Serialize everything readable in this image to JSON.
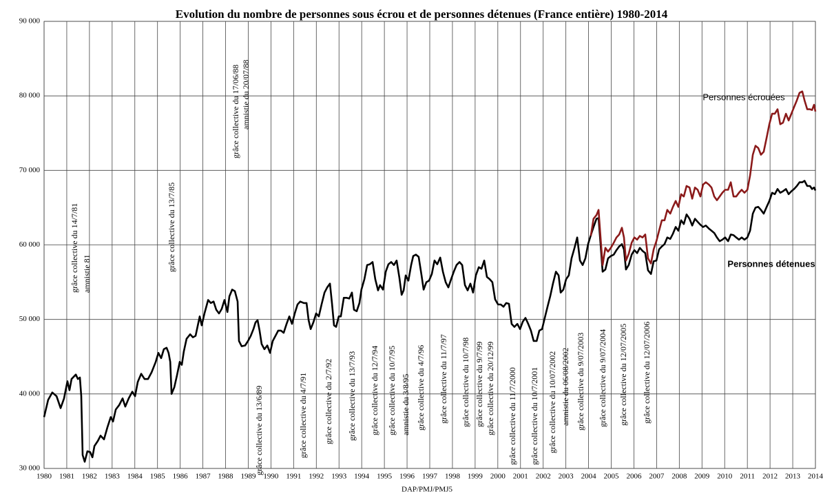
{
  "chart_data": {
    "type": "line",
    "title": "Evolution du nombre de personnes sous écrou et de personnes détenues (France entière) 1980-2014",
    "xlabel": "DAP/PMJ/PMJ5",
    "xlim": [
      1980,
      2014
    ],
    "ylim": [
      30000,
      90000
    ],
    "xticks": [
      1980,
      1981,
      1982,
      1983,
      1984,
      1985,
      1986,
      1987,
      1988,
      1989,
      1990,
      1991,
      1992,
      1993,
      1994,
      1995,
      1996,
      1997,
      1998,
      1999,
      2000,
      2001,
      2002,
      2003,
      2004,
      2005,
      2006,
      2007,
      2008,
      2009,
      2010,
      2011,
      2012,
      2013,
      2014
    ],
    "yticks": [
      {
        "value": 30000,
        "label": "30 000"
      },
      {
        "value": 40000,
        "label": "40 000"
      },
      {
        "value": 50000,
        "label": "50 000"
      },
      {
        "value": 60000,
        "label": "60 000"
      },
      {
        "value": 70000,
        "label": "70 000"
      },
      {
        "value": 80000,
        "label": "80 000"
      },
      {
        "value": 90000,
        "label": "90 000"
      }
    ],
    "grid": true,
    "annotations": [
      "grâce collective du 14/7/81",
      "amnistie 81",
      "grâce collective du 13/7/85",
      "grâce collective du 17/06/88",
      "amnistie du 20/07/88",
      "grâce collective du 13/6/89",
      "grâce collective du 4/7/91",
      "grâce collective du 2/7/92",
      "grâce collective du 13/7/93",
      "grâce collective du 12/7/94",
      "grâce collective du 10/7/95",
      "amnistie du 3/8/95",
      "grâce collective du 4/7/96",
      "grâce collective du 11/7/97",
      "grâce collective du 10/7/98",
      "grâce collective du 9/7/99",
      "grâce collective du 20/12/99",
      "grâce collective du 11/7/2000",
      "grâce collective du 10/7/2001",
      "grâce collective du 10/07/2002",
      "amnistie du  06/08/2002",
      "grâce collective du 9/07/2003",
      "grâce collective du 9/07/2004",
      "grâce collective du 12/07/2005",
      "grâce collective du 12/07/2006"
    ],
    "series": [
      {
        "name": "Personnes détenues",
        "color": "#000000",
        "x": [
          1980.0,
          1980.18,
          1980.36,
          1980.55,
          1980.73,
          1980.88,
          1981.03,
          1981.12,
          1981.21,
          1981.4,
          1981.49,
          1981.58,
          1981.64,
          1981.7,
          1981.79,
          1981.91,
          1982.03,
          1982.13,
          1982.22,
          1982.37,
          1982.49,
          1982.64,
          1982.79,
          1982.94,
          1983.04,
          1983.16,
          1983.31,
          1983.46,
          1983.58,
          1983.73,
          1983.89,
          1984.01,
          1984.13,
          1984.28,
          1984.43,
          1984.58,
          1984.74,
          1984.92,
          1985.04,
          1985.16,
          1985.28,
          1985.4,
          1985.49,
          1985.56,
          1985.62,
          1985.74,
          1985.86,
          1985.98,
          1986.07,
          1986.16,
          1986.28,
          1986.44,
          1986.56,
          1986.68,
          1986.86,
          1986.95,
          1987.07,
          1987.23,
          1987.35,
          1987.47,
          1987.59,
          1987.71,
          1987.83,
          1987.95,
          1988.08,
          1988.17,
          1988.29,
          1988.41,
          1988.53,
          1988.59,
          1988.71,
          1988.86,
          1988.99,
          1989.11,
          1989.23,
          1989.32,
          1989.41,
          1989.5,
          1989.59,
          1989.71,
          1989.84,
          1989.96,
          1990.08,
          1990.2,
          1990.32,
          1990.44,
          1990.56,
          1990.69,
          1990.81,
          1990.93,
          1991.05,
          1991.17,
          1991.29,
          1991.45,
          1991.57,
          1991.66,
          1991.75,
          1991.87,
          1991.99,
          1992.11,
          1992.23,
          1992.36,
          1992.48,
          1992.6,
          1992.69,
          1992.78,
          1992.87,
          1992.99,
          1993.08,
          1993.21,
          1993.33,
          1993.45,
          1993.57,
          1993.66,
          1993.78,
          1993.9,
          1993.99,
          1994.12,
          1994.24,
          1994.36,
          1994.48,
          1994.6,
          1994.72,
          1994.81,
          1994.94,
          1995.06,
          1995.18,
          1995.3,
          1995.42,
          1995.54,
          1995.66,
          1995.76,
          1995.85,
          1995.94,
          1996.06,
          1996.18,
          1996.27,
          1996.39,
          1996.51,
          1996.64,
          1996.73,
          1996.85,
          1996.97,
          1997.09,
          1997.21,
          1997.33,
          1997.46,
          1997.58,
          1997.7,
          1997.82,
          1997.94,
          1998.06,
          1998.18,
          1998.31,
          1998.43,
          1998.55,
          1998.67,
          1998.79,
          1998.91,
          1999.03,
          1999.16,
          1999.28,
          1999.4,
          1999.52,
          1999.64,
          1999.76,
          1999.88,
          2000.01,
          2000.13,
          2000.25,
          2000.37,
          2000.49,
          2000.61,
          2000.73,
          2000.86,
          2000.98,
          2001.1,
          2001.22,
          2001.34,
          2001.46,
          2001.58,
          2001.71,
          2001.83,
          2001.95,
          2002.07,
          2002.19,
          2002.31,
          2002.43,
          2002.56,
          2002.68,
          2002.77,
          2002.89,
          2003.01,
          2003.13,
          2003.25,
          2003.38,
          2003.5,
          2003.62,
          2003.74,
          2003.86,
          2003.98,
          2004.1,
          2004.22,
          2004.35,
          2004.44,
          2004.53,
          2004.62,
          2004.74,
          2004.86,
          2004.98,
          2005.11,
          2005.23,
          2005.35,
          2005.47,
          2005.56,
          2005.65,
          2005.77,
          2005.9,
          2006.02,
          2006.14,
          2006.26,
          2006.38,
          2006.5,
          2006.62,
          2006.75,
          2006.87,
          2006.99,
          2007.11,
          2007.23,
          2007.35,
          2007.47,
          2007.6,
          2007.72,
          2007.84,
          2007.96,
          2008.08,
          2008.2,
          2008.32,
          2008.45,
          2008.57,
          2008.69,
          2008.81,
          2008.93,
          2009.05,
          2009.17,
          2009.3,
          2009.42,
          2009.54,
          2009.66,
          2009.78,
          2009.9,
          2010.02,
          2010.15,
          2010.27,
          2010.39,
          2010.51,
          2010.63,
          2010.75,
          2010.87,
          2011.0,
          2011.12,
          2011.24,
          2011.36,
          2011.48,
          2011.6,
          2011.72,
          2011.85,
          2011.97,
          2012.09,
          2012.21,
          2012.33,
          2012.45,
          2012.57,
          2012.7,
          2012.82,
          2012.94,
          2013.06,
          2013.18,
          2013.3,
          2013.42,
          2013.52,
          2013.64,
          2013.76,
          2013.85,
          2013.94,
          2014.0
        ],
        "values": [
          36900,
          39200,
          40200,
          39700,
          38100,
          39400,
          41700,
          40500,
          42000,
          42600,
          42000,
          42200,
          39700,
          31800,
          30900,
          32300,
          32200,
          31500,
          33000,
          33700,
          34400,
          33900,
          35500,
          36900,
          36300,
          37900,
          38500,
          39400,
          38300,
          39400,
          40300,
          39700,
          41600,
          42700,
          42000,
          42000,
          42900,
          44300,
          45500,
          44800,
          46000,
          46200,
          45500,
          44300,
          40000,
          40900,
          42500,
          44300,
          43900,
          45700,
          47400,
          48000,
          47600,
          47800,
          50400,
          49200,
          50800,
          52600,
          52200,
          52400,
          51300,
          50800,
          51400,
          52600,
          51000,
          53100,
          54000,
          53800,
          52400,
          47100,
          46400,
          46500,
          47100,
          47800,
          48700,
          49600,
          49900,
          48500,
          46700,
          46000,
          46500,
          45500,
          47100,
          47800,
          48500,
          48500,
          48200,
          49400,
          50400,
          49400,
          50800,
          52000,
          52400,
          52200,
          52200,
          49900,
          48700,
          49600,
          50800,
          50400,
          52000,
          53600,
          54300,
          54800,
          52200,
          49200,
          49000,
          50400,
          50400,
          52900,
          52900,
          52800,
          53600,
          51300,
          51100,
          52200,
          54000,
          55400,
          57300,
          57400,
          57700,
          55400,
          53900,
          54600,
          54000,
          56400,
          57400,
          57700,
          57300,
          57900,
          55600,
          53300,
          53900,
          55900,
          55200,
          57300,
          58500,
          58700,
          58400,
          55900,
          54000,
          55000,
          55200,
          56100,
          57900,
          57400,
          58300,
          56400,
          55000,
          54300,
          55400,
          56400,
          57300,
          57700,
          57300,
          54600,
          53900,
          54800,
          53600,
          55900,
          57000,
          56800,
          57900,
          55700,
          55400,
          55000,
          52700,
          52000,
          52000,
          51700,
          52200,
          52100,
          49400,
          49000,
          49400,
          48700,
          49700,
          50200,
          49400,
          48500,
          47100,
          47100,
          48500,
          48700,
          50200,
          51700,
          53100,
          54800,
          56400,
          55900,
          53600,
          54000,
          55400,
          55900,
          58200,
          59600,
          61000,
          57900,
          57300,
          58200,
          60100,
          61300,
          62400,
          63500,
          63600,
          60100,
          56400,
          56700,
          58200,
          58500,
          58700,
          59300,
          59800,
          60100,
          59400,
          56700,
          57300,
          58700,
          59300,
          58900,
          59600,
          59200,
          58900,
          56600,
          56100,
          57800,
          57900,
          59400,
          59800,
          60100,
          61000,
          60800,
          61500,
          62400,
          61900,
          63300,
          62800,
          64100,
          63500,
          62600,
          63500,
          63100,
          62700,
          62400,
          62600,
          62200,
          61900,
          61600,
          61000,
          60500,
          60700,
          61000,
          60500,
          61400,
          61300,
          61000,
          60700,
          61000,
          60700,
          61000,
          61900,
          64200,
          65000,
          65100,
          64700,
          64200,
          65100,
          65900,
          67000,
          66800,
          67500,
          67000,
          67200,
          67500,
          66800,
          67200,
          67500,
          67900,
          68400,
          68400,
          68600,
          67900,
          67900,
          67500,
          67700,
          67300
        ]
      },
      {
        "name": "Personnes  écrouées",
        "color": "#8b1a1a",
        "x": [
          2004.1,
          2004.22,
          2004.35,
          2004.44,
          2004.53,
          2004.62,
          2004.74,
          2004.86,
          2004.98,
          2005.11,
          2005.23,
          2005.35,
          2005.47,
          2005.56,
          2005.65,
          2005.77,
          2005.9,
          2006.02,
          2006.14,
          2006.26,
          2006.38,
          2006.5,
          2006.62,
          2006.75,
          2006.87,
          2006.99,
          2007.11,
          2007.23,
          2007.35,
          2007.47,
          2007.6,
          2007.72,
          2007.84,
          2007.96,
          2008.08,
          2008.2,
          2008.32,
          2008.45,
          2008.57,
          2008.69,
          2008.81,
          2008.93,
          2009.05,
          2009.17,
          2009.3,
          2009.42,
          2009.54,
          2009.66,
          2009.78,
          2009.9,
          2010.02,
          2010.15,
          2010.27,
          2010.39,
          2010.51,
          2010.63,
          2010.75,
          2010.87,
          2011.0,
          2011.12,
          2011.24,
          2011.36,
          2011.48,
          2011.6,
          2011.72,
          2011.85,
          2011.97,
          2012.09,
          2012.21,
          2012.33,
          2012.45,
          2012.57,
          2012.7,
          2012.82,
          2012.94,
          2013.06,
          2013.18,
          2013.3,
          2013.42,
          2013.52,
          2013.64,
          2013.76,
          2013.85,
          2013.94,
          2014.0
        ],
        "values": [
          61200,
          63500,
          64000,
          64700,
          61000,
          57300,
          59600,
          59100,
          59600,
          60300,
          61000,
          61400,
          62300,
          61000,
          57900,
          58800,
          60300,
          61000,
          60700,
          61200,
          61000,
          61400,
          58200,
          57500,
          59400,
          60500,
          61900,
          63300,
          63300,
          64700,
          64200,
          65100,
          65900,
          65100,
          66800,
          66500,
          67900,
          67700,
          66200,
          67700,
          67400,
          66500,
          68100,
          68400,
          68100,
          67700,
          66500,
          66000,
          66500,
          67000,
          67400,
          67400,
          68400,
          66500,
          66500,
          67000,
          67400,
          67000,
          67400,
          69300,
          72100,
          73300,
          73000,
          72100,
          72500,
          74400,
          76200,
          77600,
          77600,
          78200,
          76200,
          76400,
          77600,
          76700,
          77600,
          78500,
          79400,
          80400,
          80600,
          79400,
          78200,
          78200,
          78100,
          78800,
          77900
        ]
      }
    ]
  }
}
